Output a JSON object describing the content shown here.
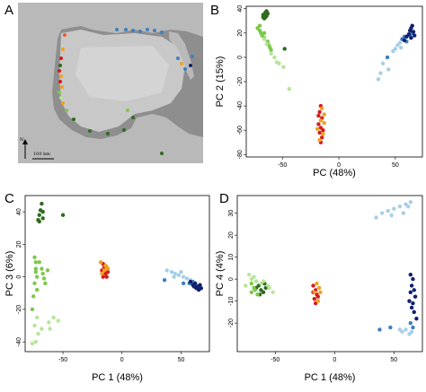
{
  "panels": {
    "a": "A",
    "b": "B",
    "c": "C",
    "d": "D"
  },
  "map": {
    "scale_label": "100 km",
    "north_label": "N",
    "site_points": [
      {
        "c": "#ee5a36",
        "lat": 0.2
      },
      {
        "c": "#ee5a36",
        "lat": 0.32
      }
    ]
  },
  "colors": {
    "dark_green": "#2f6b1e",
    "green": "#7cc84a",
    "light_green": "#b7e59a",
    "red": "#d61b1b",
    "orange": "#f0a020",
    "light_blue": "#a7cfe6",
    "blue": "#3f7fc0",
    "dark_blue": "#10206e"
  },
  "chart_data": [
    {
      "type": "scatter",
      "id": "B",
      "xlabel": "PC (48%)",
      "ylabel": "PC 2 (15%)",
      "xlim": [
        -82,
        74
      ],
      "ylim": [
        -82,
        42
      ],
      "xticks": [
        -50,
        0,
        50
      ],
      "yticks": [
        -80,
        -60,
        -40,
        -20,
        0,
        20,
        40
      ],
      "series": [
        {
          "color": "dark_green",
          "points": [
            [
              -67,
              35
            ],
            [
              -65,
              37
            ],
            [
              -64,
              34
            ],
            [
              -66,
              32
            ],
            [
              -63,
              36
            ],
            [
              -65,
              33
            ],
            [
              -67,
              33
            ],
            [
              -64,
              38
            ],
            [
              -48,
              7
            ]
          ]
        },
        {
          "color": "green",
          "points": [
            [
              -72,
              24
            ],
            [
              -70,
              22
            ],
            [
              -69,
              20
            ],
            [
              -68,
              18
            ],
            [
              -66,
              16
            ],
            [
              -63,
              13
            ],
            [
              -62,
              10
            ],
            [
              -61,
              8
            ],
            [
              -60,
              6
            ],
            [
              -70,
              26
            ],
            [
              -66,
              20
            ]
          ]
        },
        {
          "color": "light_green",
          "points": [
            [
              -66,
              15
            ],
            [
              -64,
              11
            ],
            [
              -60,
              3
            ],
            [
              -57,
              0
            ],
            [
              -55,
              -4
            ],
            [
              -53,
              -5
            ],
            [
              -49,
              -8
            ],
            [
              -44,
              -26
            ]
          ]
        },
        {
          "color": "red",
          "points": [
            [
              -16,
              -40
            ],
            [
              -17,
              -45
            ],
            [
              -15,
              -50
            ],
            [
              -18,
              -55
            ],
            [
              -16,
              -58
            ],
            [
              -17,
              -62
            ],
            [
              -15,
              -66
            ],
            [
              -16,
              -70
            ],
            [
              -18,
              -48
            ],
            [
              -14,
              -60
            ]
          ]
        },
        {
          "color": "orange",
          "points": [
            [
              -15,
              -42
            ],
            [
              -13,
              -47
            ],
            [
              -16,
              -52
            ],
            [
              -14,
              -63
            ],
            [
              -19,
              -59
            ],
            [
              -13,
              -54
            ],
            [
              -17,
              -68
            ]
          ]
        },
        {
          "color": "light_blue",
          "points": [
            [
              35,
              -18
            ],
            [
              37,
              -13
            ],
            [
              39,
              -5
            ],
            [
              44,
              -10
            ],
            [
              48,
              5
            ],
            [
              50,
              7
            ],
            [
              52,
              10
            ],
            [
              54,
              12
            ],
            [
              55,
              8
            ]
          ]
        },
        {
          "color": "blue",
          "points": [
            [
              43,
              0
            ],
            [
              56,
              15
            ],
            [
              58,
              17
            ],
            [
              60,
              13
            ],
            [
              63,
              18
            ],
            [
              65,
              20
            ]
          ]
        },
        {
          "color": "dark_blue",
          "points": [
            [
              58,
              14
            ],
            [
              60,
              17
            ],
            [
              62,
              19
            ],
            [
              63,
              22
            ],
            [
              64,
              24
            ],
            [
              65,
              26
            ],
            [
              66,
              21
            ],
            [
              67,
              18
            ],
            [
              64,
              16
            ]
          ]
        }
      ]
    },
    {
      "type": "scatter",
      "id": "C",
      "xlabel": "PC 1 (48%)",
      "ylabel": "PC 3 (6%)",
      "xlim": [
        -82,
        74
      ],
      "ylim": [
        -46,
        50
      ],
      "xticks": [
        -50,
        0,
        50
      ],
      "yticks": [
        -40,
        -20,
        0,
        20,
        40
      ],
      "series": [
        {
          "color": "dark_green",
          "points": [
            [
              -68,
              45
            ],
            [
              -69,
              41
            ],
            [
              -70,
              38
            ],
            [
              -71,
              35
            ],
            [
              -70,
              34
            ],
            [
              -67,
              40
            ],
            [
              -67,
              36
            ],
            [
              -50,
              38
            ]
          ]
        },
        {
          "color": "green",
          "points": [
            [
              -74,
              12
            ],
            [
              -73,
              9
            ],
            [
              -73,
              5
            ],
            [
              -73,
              3
            ],
            [
              -72,
              0
            ],
            [
              -74,
              -4
            ],
            [
              -72,
              -8
            ],
            [
              -75,
              -12
            ],
            [
              -76,
              -20
            ],
            [
              -70,
              9
            ],
            [
              -68,
              5
            ],
            [
              -67,
              2
            ],
            [
              -66,
              -1
            ],
            [
              -63,
              4
            ],
            [
              -65,
              -4
            ]
          ]
        },
        {
          "color": "light_green",
          "points": [
            [
              -72,
              -25
            ],
            [
              -74,
              -30
            ],
            [
              -71,
              -35
            ],
            [
              -73,
              -40
            ],
            [
              -68,
              -32
            ],
            [
              -62,
              -28
            ],
            [
              -61,
              -32
            ],
            [
              -58,
              -25
            ],
            [
              -54,
              -27
            ],
            [
              -76,
              -41
            ]
          ]
        },
        {
          "color": "red",
          "points": [
            [
              -16,
              8
            ],
            [
              -15,
              6
            ],
            [
              -17,
              4
            ],
            [
              -14,
              2
            ],
            [
              -13,
              0
            ],
            [
              -16,
              0
            ],
            [
              -12,
              3
            ]
          ]
        },
        {
          "color": "orange",
          "points": [
            [
              -18,
              9
            ],
            [
              -13,
              6
            ],
            [
              -15,
              4
            ],
            [
              -17,
              2
            ],
            [
              -14,
              7
            ],
            [
              -12,
              5
            ]
          ]
        },
        {
          "color": "light_blue",
          "points": [
            [
              38,
              4
            ],
            [
              42,
              3
            ],
            [
              45,
              2
            ],
            [
              48,
              1
            ],
            [
              52,
              0
            ],
            [
              55,
              -1
            ],
            [
              58,
              -2
            ],
            [
              50,
              3
            ],
            [
              44,
              0
            ]
          ]
        },
        {
          "color": "blue",
          "points": [
            [
              36,
              -2
            ],
            [
              52,
              -4
            ],
            [
              57,
              -4
            ],
            [
              60,
              -3
            ],
            [
              62,
              -5
            ],
            [
              65,
              -6
            ]
          ]
        },
        {
          "color": "dark_blue",
          "points": [
            [
              58,
              -3
            ],
            [
              60,
              -5
            ],
            [
              62,
              -4
            ],
            [
              64,
              -6
            ],
            [
              66,
              -5
            ],
            [
              67,
              -7
            ],
            [
              65,
              -8
            ],
            [
              63,
              -7
            ],
            [
              61,
              -6
            ]
          ]
        }
      ]
    },
    {
      "type": "scatter",
      "id": "D",
      "xlabel": "PC 1 (48%)",
      "ylabel": "PC 4 (4%)",
      "xlim": [
        -82,
        74
      ],
      "ylim": [
        -33,
        38
      ],
      "xticks": [
        -50,
        0,
        50
      ],
      "yticks": [
        -20,
        -10,
        0,
        10,
        20,
        30
      ],
      "series": [
        {
          "color": "dark_green",
          "points": [
            [
              -66,
              -4
            ],
            [
              -64,
              -3
            ],
            [
              -62,
              -5
            ],
            [
              -60,
              -6
            ],
            [
              -58,
              -4
            ],
            [
              -63,
              -7
            ],
            [
              -59,
              -2
            ]
          ]
        },
        {
          "color": "green",
          "points": [
            [
              -70,
              -2
            ],
            [
              -68,
              -4
            ],
            [
              -67,
              -5
            ],
            [
              -65,
              -7
            ],
            [
              -70,
              -6
            ],
            [
              -66,
              -1
            ]
          ]
        },
        {
          "color": "light_green",
          "points": [
            [
              -72,
              2
            ],
            [
              -70,
              0
            ],
            [
              -68,
              1
            ],
            [
              -66,
              -1
            ],
            [
              -62,
              -2
            ],
            [
              -60,
              -1
            ],
            [
              -56,
              -3
            ],
            [
              -52,
              -6
            ],
            [
              -75,
              -3
            ],
            [
              -55,
              -4
            ]
          ]
        },
        {
          "color": "red",
          "points": [
            [
              -18,
              -3
            ],
            [
              -16,
              -5
            ],
            [
              -15,
              -7
            ],
            [
              -17,
              -9
            ],
            [
              -16,
              -11
            ],
            [
              -14,
              -8
            ],
            [
              -18,
              -6
            ]
          ]
        },
        {
          "color": "orange",
          "points": [
            [
              -15,
              -2
            ],
            [
              -13,
              -4
            ],
            [
              -17,
              -6
            ],
            [
              -14,
              -10
            ],
            [
              -12,
              -6
            ]
          ]
        },
        {
          "color": "light_blue",
          "points": [
            [
              40,
              30
            ],
            [
              45,
              31
            ],
            [
              50,
              32
            ],
            [
              55,
              33
            ],
            [
              60,
              34
            ],
            [
              62,
              33
            ],
            [
              64,
              35
            ],
            [
              58,
              30
            ],
            [
              48,
              29
            ],
            [
              35,
              28
            ],
            [
              55,
              -23
            ],
            [
              57,
              -24
            ],
            [
              60,
              -23
            ],
            [
              63,
              -25
            ],
            [
              65,
              -24
            ]
          ]
        },
        {
          "color": "blue",
          "points": [
            [
              38,
              -23
            ],
            [
              47,
              -22
            ],
            [
              64,
              -20
            ],
            [
              66,
              -22
            ]
          ]
        },
        {
          "color": "dark_blue",
          "points": [
            [
              64,
              2
            ],
            [
              66,
              0
            ],
            [
              65,
              -3
            ],
            [
              67,
              -5
            ],
            [
              68,
              -8
            ],
            [
              66,
              -11
            ],
            [
              65,
              -13
            ],
            [
              67,
              -15
            ],
            [
              69,
              -18
            ],
            [
              64,
              -6
            ],
            [
              63,
              -10
            ]
          ]
        }
      ]
    }
  ]
}
